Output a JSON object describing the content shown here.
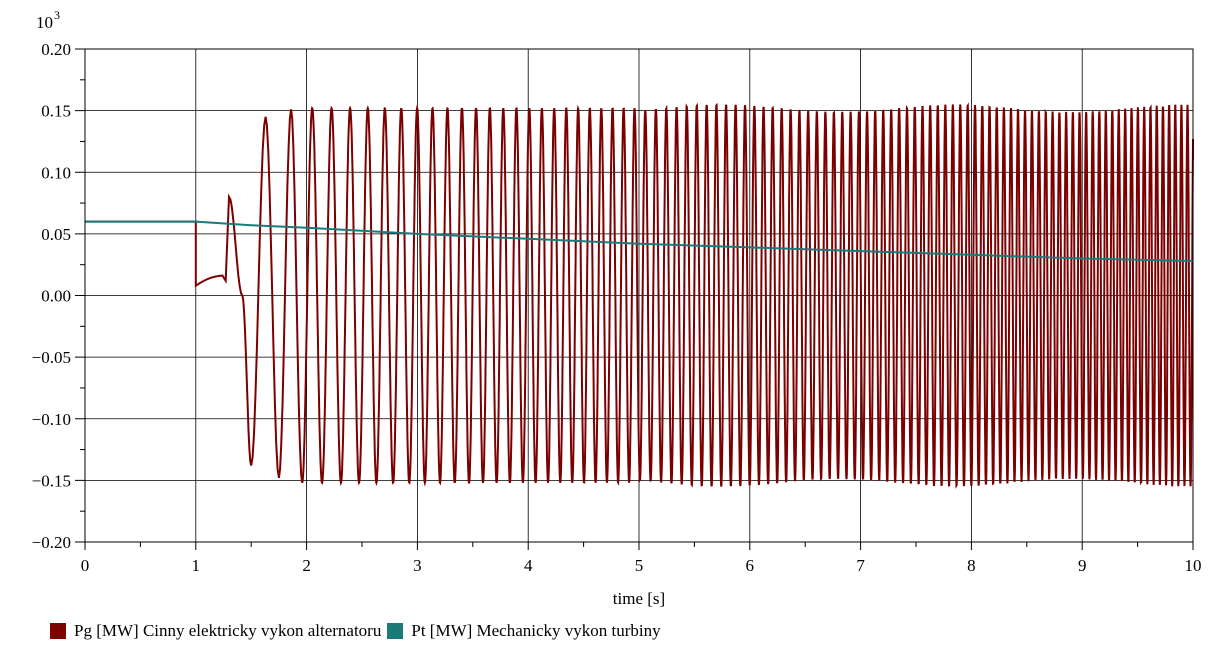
{
  "chart_data": {
    "type": "line",
    "xlabel": "time [s]",
    "ylabel": "",
    "y_multiplier_label": "10",
    "y_multiplier_exp": "3",
    "xlim": [
      0,
      10
    ],
    "ylim": [
      -0.2,
      0.2
    ],
    "x_ticks": [
      "0",
      "1",
      "2",
      "3",
      "4",
      "5",
      "6",
      "7",
      "8",
      "9",
      "10"
    ],
    "y_ticks": [
      "0.20",
      "0.15",
      "0.10",
      "0.05",
      "0.00",
      "−0.05",
      "−0.10",
      "−0.15",
      "−0.20"
    ],
    "grid": true,
    "legend_position": "bottom-left",
    "series": [
      {
        "name": "Pg [MW] Cinny elektricky vykon alternatoru",
        "color": "#7b0000",
        "description_points": [
          {
            "x": 0,
            "y": 0.06
          },
          {
            "x": 1,
            "y": 0.06
          },
          {
            "x": 1.0,
            "y": 0.008
          },
          {
            "x": 1.25,
            "y": 0.015
          },
          {
            "x": 1.3,
            "y": 0.08
          },
          {
            "x": 1.5,
            "y": -0.138
          },
          {
            "x": 1.63,
            "y": 0.145
          },
          {
            "x": 1.75,
            "y": -0.148
          },
          {
            "x": 1.86,
            "y": 0.151
          }
        ],
        "oscillation_amplitude": 0.152,
        "oscillation_after_x": 2.0
      },
      {
        "name": "Pt [MW] Mechanicky vykon turbiny",
        "color": "#1a7a7a",
        "x": [
          0,
          1,
          1.5,
          2,
          3,
          4,
          5,
          6,
          7,
          8,
          9,
          10
        ],
        "values": [
          0.06,
          0.06,
          0.057,
          0.055,
          0.05,
          0.046,
          0.042,
          0.039,
          0.036,
          0.033,
          0.03,
          0.028
        ]
      }
    ]
  }
}
